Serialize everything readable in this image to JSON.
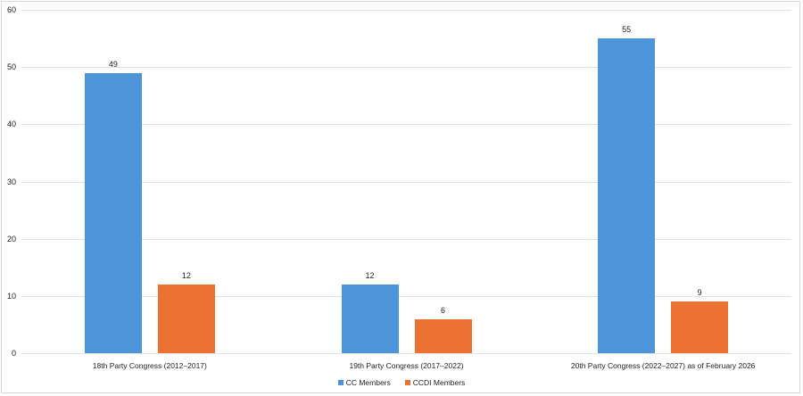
{
  "chart_data": {
    "type": "bar",
    "title": "",
    "xlabel": "",
    "ylabel": "",
    "ylim": [
      0,
      60
    ],
    "yticks": [
      0,
      10,
      20,
      30,
      40,
      50,
      60
    ],
    "grid": true,
    "legend_position": "bottom",
    "categories": [
      "18th Party Congress (2012–2017)",
      "19th Party Congress (2017–2022)",
      "20th Party Congress (2022–2027) as of February 2026"
    ],
    "series": [
      {
        "name": "CC Members",
        "color": "#4e94d8",
        "values": [
          49,
          12,
          55
        ]
      },
      {
        "name": "CCDI Members",
        "color": "#ec7233",
        "values": [
          12,
          6,
          9
        ]
      }
    ],
    "data_labels": true
  }
}
